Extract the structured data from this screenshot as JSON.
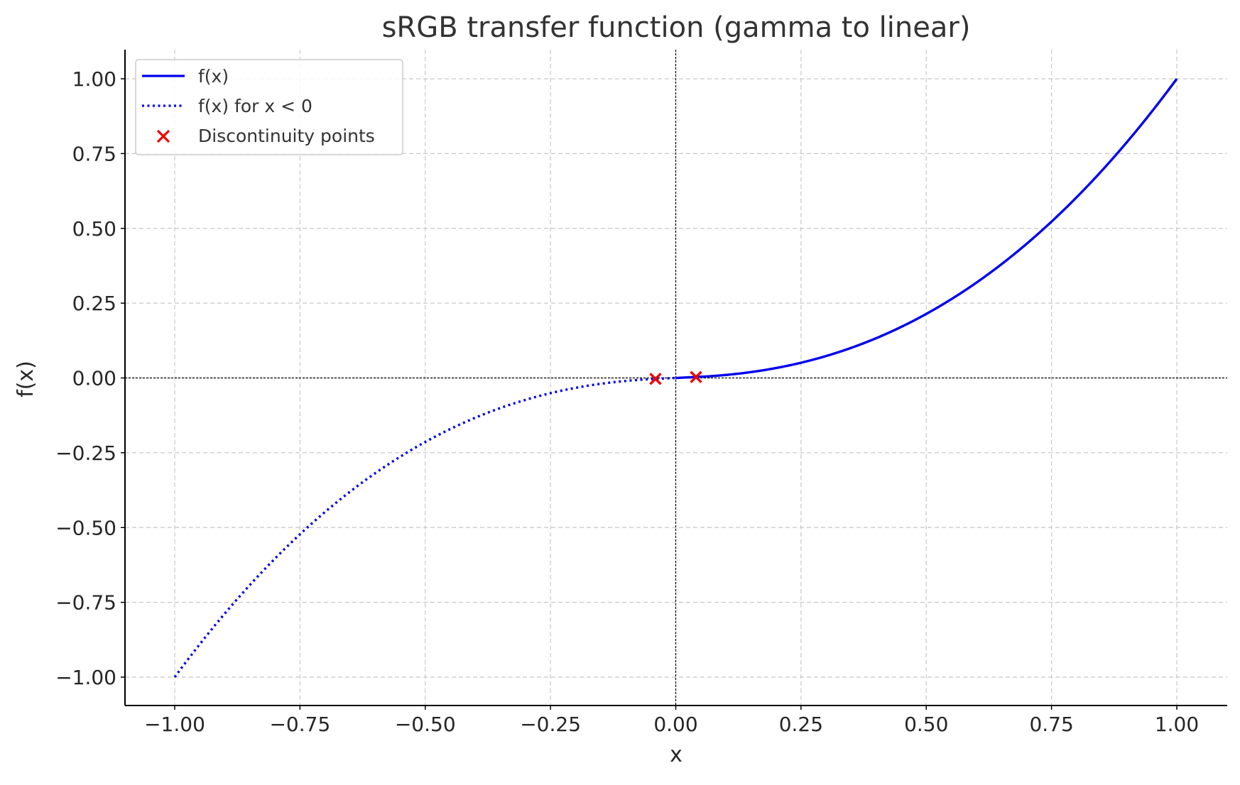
{
  "chart_data": {
    "type": "line",
    "title": "sRGB transfer function (gamma to linear)",
    "xlabel": "x",
    "ylabel": "f(x)",
    "xlim": [
      -1.1,
      1.1
    ],
    "ylim": [
      -1.1,
      1.1
    ],
    "xticks": [
      -1.0,
      -0.75,
      -0.5,
      -0.25,
      0.0,
      0.25,
      0.5,
      0.75,
      1.0
    ],
    "yticks": [
      -1.0,
      -0.75,
      -0.5,
      -0.25,
      0.0,
      0.25,
      0.5,
      0.75,
      1.0
    ],
    "xtick_labels": [
      "−1.00",
      "−0.75",
      "−0.50",
      "−0.25",
      "0.00",
      "0.25",
      "0.50",
      "0.75",
      "1.00"
    ],
    "ytick_labels": [
      "−1.00",
      "−0.75",
      "−0.50",
      "−0.25",
      "0.00",
      "0.25",
      "0.50",
      "0.75",
      "1.00"
    ],
    "grid": true,
    "legend_position": "upper-left",
    "series": [
      {
        "name": "f(x)",
        "style": "solid",
        "color": "#0000ee",
        "x": [
          0.0,
          0.05,
          0.1,
          0.15,
          0.2,
          0.25,
          0.3,
          0.35,
          0.4,
          0.45,
          0.5,
          0.55,
          0.6,
          0.65,
          0.7,
          0.75,
          0.8,
          0.85,
          0.9,
          0.95,
          1.0
        ],
        "y": [
          0.0,
          0.004,
          0.01,
          0.02,
          0.033,
          0.051,
          0.073,
          0.1,
          0.133,
          0.171,
          0.214,
          0.262,
          0.319,
          0.381,
          0.448,
          0.522,
          0.604,
          0.694,
          0.787,
          0.89,
          1.0
        ]
      },
      {
        "name": "f(x) for x < 0",
        "style": "dotted",
        "color": "#0000ee",
        "x": [
          -1.0,
          -0.95,
          -0.9,
          -0.85,
          -0.8,
          -0.75,
          -0.7,
          -0.65,
          -0.6,
          -0.55,
          -0.5,
          -0.45,
          -0.4,
          -0.35,
          -0.3,
          -0.25,
          -0.2,
          -0.15,
          -0.1,
          -0.05,
          0.0
        ],
        "y": [
          -1.0,
          -0.89,
          -0.787,
          -0.694,
          -0.604,
          -0.522,
          -0.448,
          -0.381,
          -0.319,
          -0.262,
          -0.214,
          -0.171,
          -0.133,
          -0.1,
          -0.073,
          -0.051,
          -0.033,
          -0.02,
          -0.01,
          -0.004,
          0.0
        ]
      }
    ],
    "markers": {
      "name": "Discontinuity points",
      "marker": "x",
      "color": "#ee0000",
      "points": [
        {
          "x": -0.04045,
          "y": -0.0031
        },
        {
          "x": 0.04045,
          "y": 0.0031
        }
      ]
    },
    "reference_lines": {
      "x0": 0,
      "y0": 0,
      "color": "#000000",
      "style": "dashed"
    }
  }
}
